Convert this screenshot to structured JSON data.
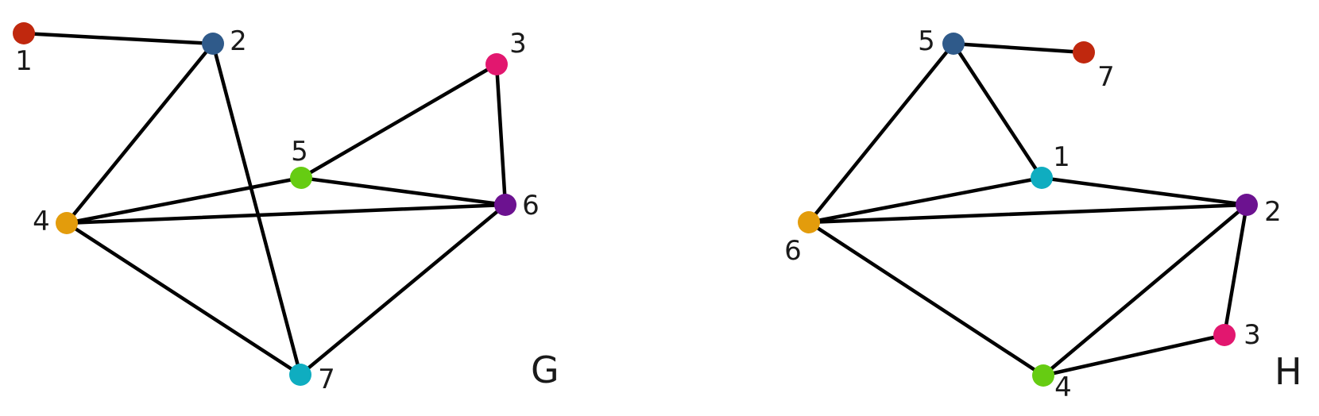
{
  "graphs": [
    {
      "id": "G",
      "name": "G",
      "nodes": [
        {
          "label": "1",
          "color": "#c0280e"
        },
        {
          "label": "2",
          "color": "#2f5a8a"
        },
        {
          "label": "3",
          "color": "#e2176f"
        },
        {
          "label": "4",
          "color": "#e39c0c"
        },
        {
          "label": "5",
          "color": "#66cc12"
        },
        {
          "label": "6",
          "color": "#6c1290"
        },
        {
          "label": "7",
          "color": "#0fadc0"
        }
      ],
      "edges": [
        [
          "1",
          "2"
        ],
        [
          "2",
          "4"
        ],
        [
          "2",
          "7"
        ],
        [
          "3",
          "5"
        ],
        [
          "3",
          "6"
        ],
        [
          "4",
          "5"
        ],
        [
          "4",
          "6"
        ],
        [
          "4",
          "7"
        ],
        [
          "5",
          "6"
        ],
        [
          "6",
          "7"
        ]
      ]
    },
    {
      "id": "H",
      "name": "H",
      "nodes": [
        {
          "label": "1",
          "color": "#0fadc0"
        },
        {
          "label": "2",
          "color": "#6c1290"
        },
        {
          "label": "3",
          "color": "#e2176f"
        },
        {
          "label": "4",
          "color": "#66cc12"
        },
        {
          "label": "5",
          "color": "#2f5a8a"
        },
        {
          "label": "6",
          "color": "#e39c0c"
        },
        {
          "label": "7",
          "color": "#c0280e"
        }
      ],
      "edges": [
        [
          "5",
          "7"
        ],
        [
          "5",
          "6"
        ],
        [
          "5",
          "1"
        ],
        [
          "1",
          "6"
        ],
        [
          "1",
          "2"
        ],
        [
          "6",
          "2"
        ],
        [
          "6",
          "4"
        ],
        [
          "2",
          "4"
        ],
        [
          "2",
          "3"
        ],
        [
          "3",
          "4"
        ]
      ]
    }
  ]
}
